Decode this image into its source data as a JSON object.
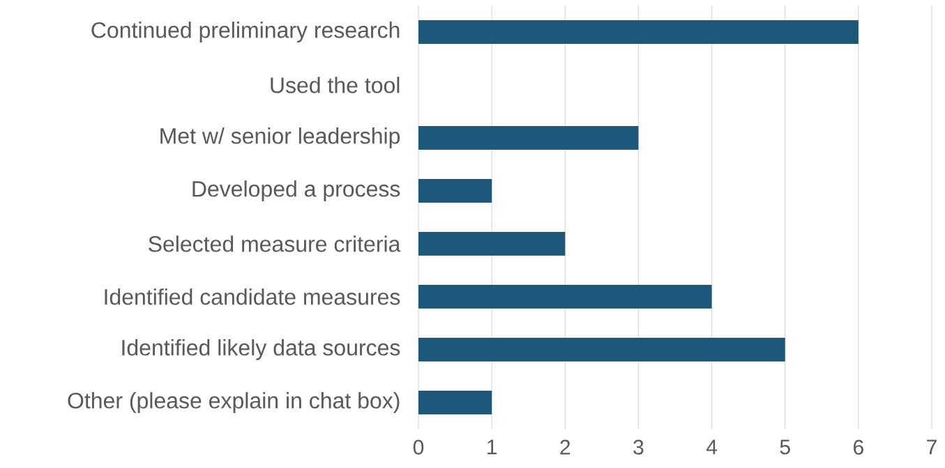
{
  "chart_data": {
    "type": "bar",
    "orientation": "horizontal",
    "categories": [
      "Continued preliminary research",
      "Used the tool",
      "Met w/ senior leadership",
      "Developed a process",
      "Selected measure criteria",
      "Identified candidate measures",
      "Identified likely data sources",
      "Other (please explain in chat box)"
    ],
    "values": [
      6,
      0,
      3,
      1,
      2,
      4,
      5,
      1
    ],
    "color": "#1d5779",
    "xlim": [
      0,
      7
    ],
    "xticks": [
      0,
      1,
      2,
      3,
      4,
      5,
      6,
      7
    ],
    "grid": "x"
  }
}
